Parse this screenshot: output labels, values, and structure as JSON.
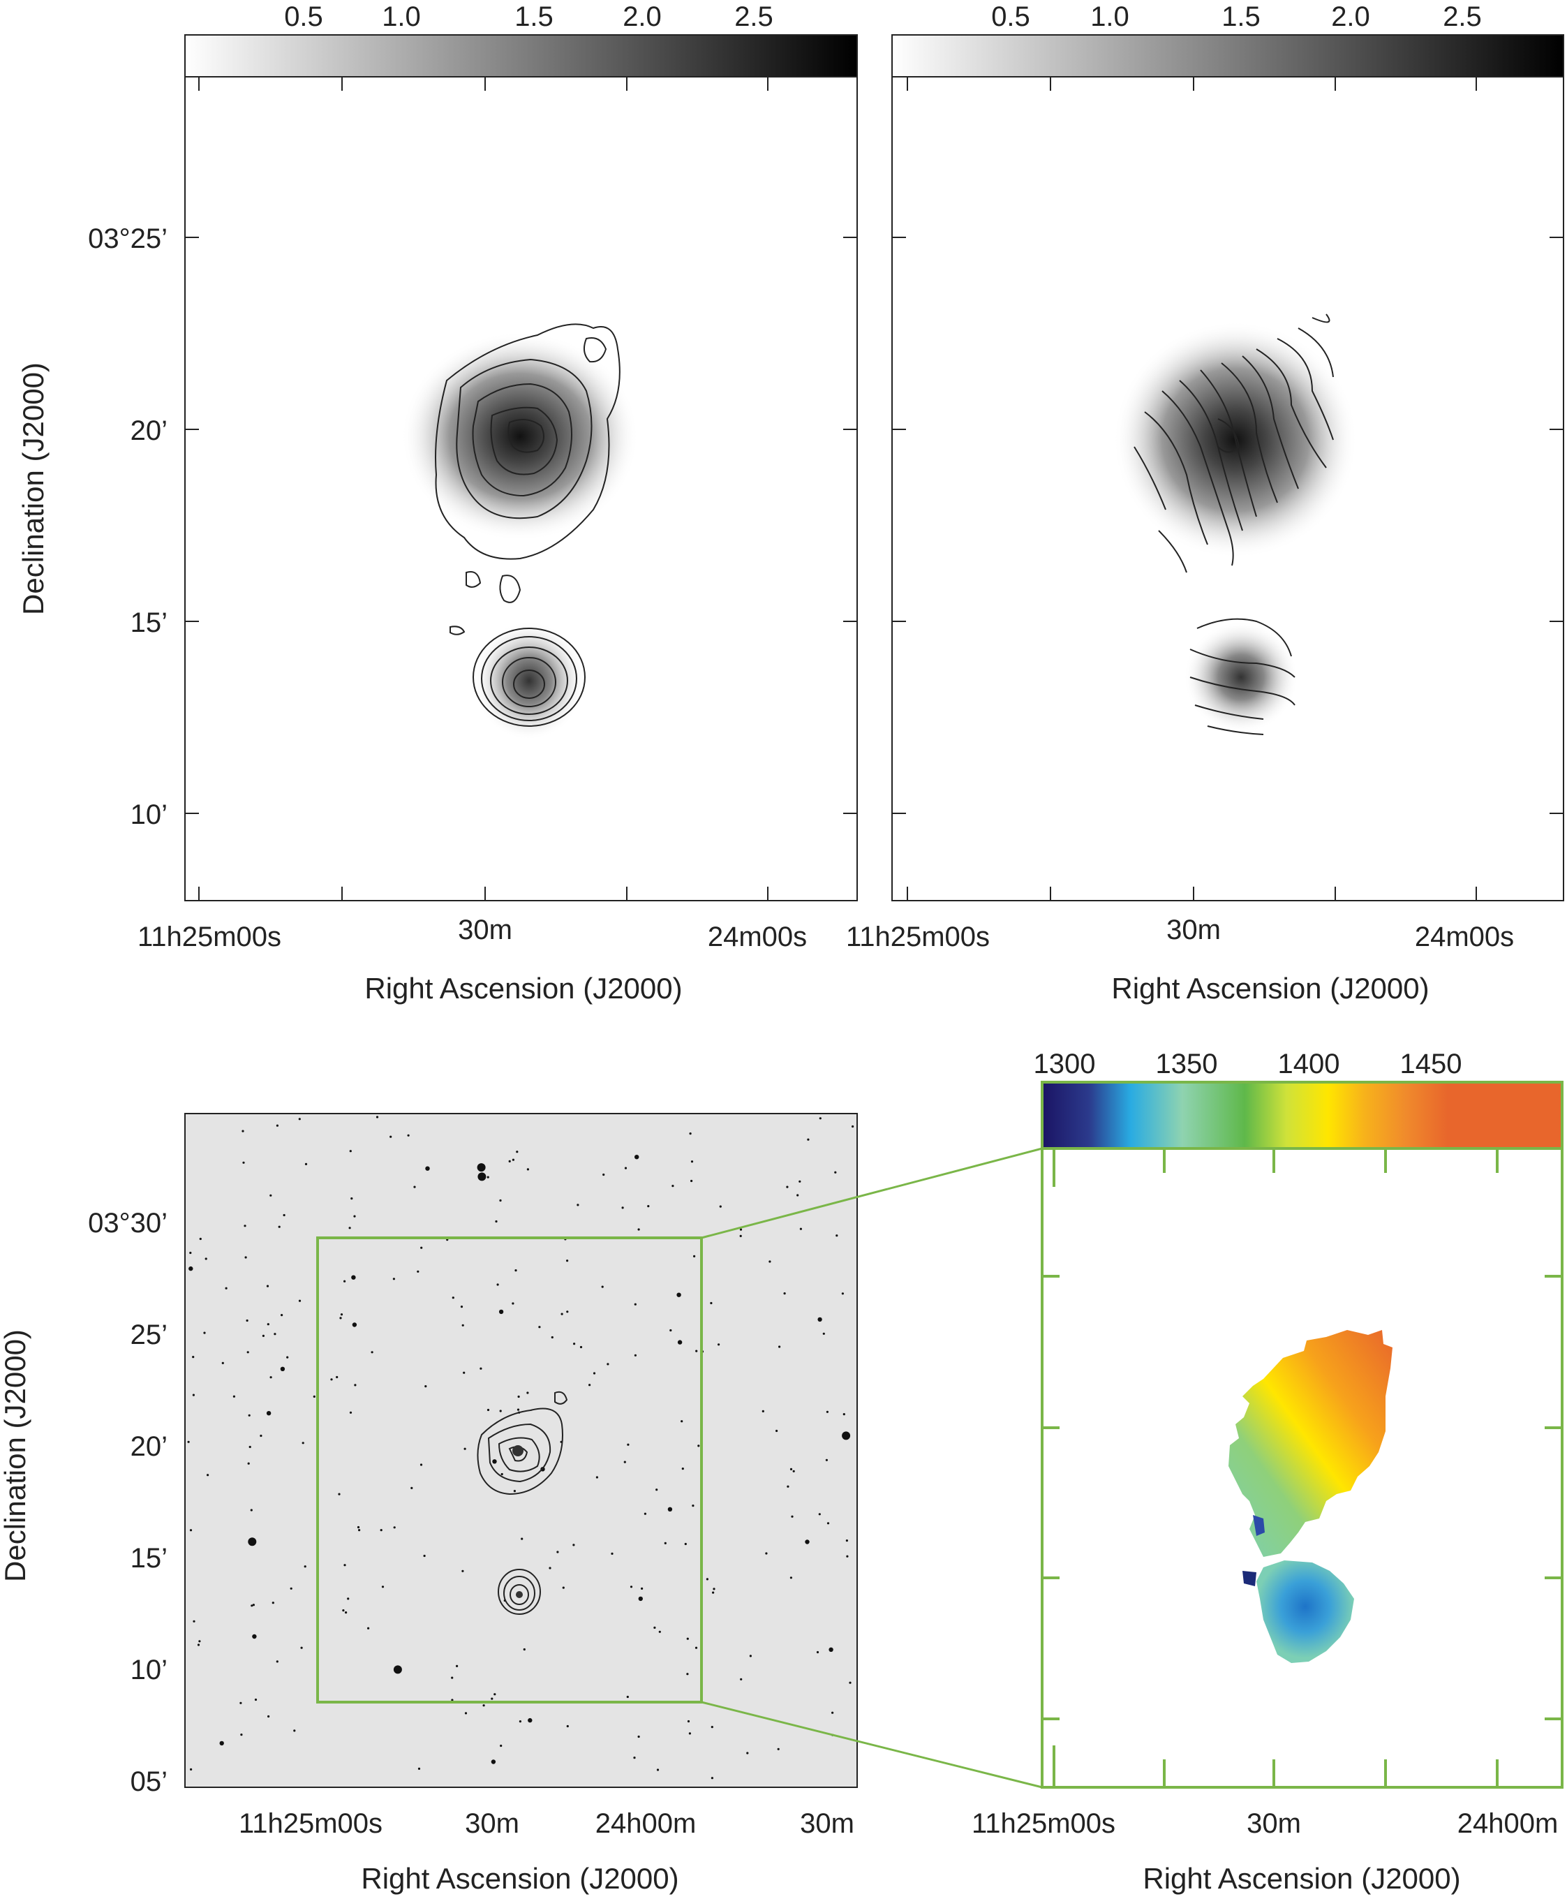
{
  "panels": {
    "top_left": {
      "colorbar_ticks": [
        "0.5",
        "1.0",
        "1.5",
        "2.0",
        "2.5"
      ],
      "y_ticks": [
        "03°25’",
        "20’",
        "15’",
        "10’"
      ],
      "ylabel": "Declination (J2000)",
      "x_ticks": [
        "11h25m00s",
        "30m",
        "24m00s"
      ],
      "xlabel": "Right Ascension (J2000)"
    },
    "top_right": {
      "colorbar_ticks": [
        "0.5",
        "1.0",
        "1.5",
        "2.0",
        "2.5"
      ],
      "x_ticks": [
        "11h25m00s",
        "30m",
        "24m00s"
      ],
      "xlabel": "Right Ascension (J2000)"
    },
    "bottom_left": {
      "y_ticks": [
        "03°30’",
        "25’",
        "20’",
        "15’",
        "10’",
        "05’"
      ],
      "ylabel": "Declination (J2000)",
      "x_ticks": [
        "11h25m00s",
        "30m",
        "24h00m",
        "30m"
      ],
      "xlabel": "Right Ascension (J2000)"
    },
    "bottom_right": {
      "colorbar_ticks": [
        "1300",
        "1350",
        "1400",
        "1450"
      ],
      "x_ticks": [
        "11h25m00s",
        "30m",
        "24h00m"
      ],
      "xlabel": "Right Ascension (J2000)"
    }
  },
  "colors": {
    "box_green": "#7ab648",
    "ink": "#222222"
  },
  "velocity_colormap": [
    "#1b1464",
    "#29abe2",
    "#8fd3b0",
    "#5fb84a",
    "#cfe23a",
    "#ffe600",
    "#f7a21b",
    "#ec7434",
    "#e8662c"
  ]
}
